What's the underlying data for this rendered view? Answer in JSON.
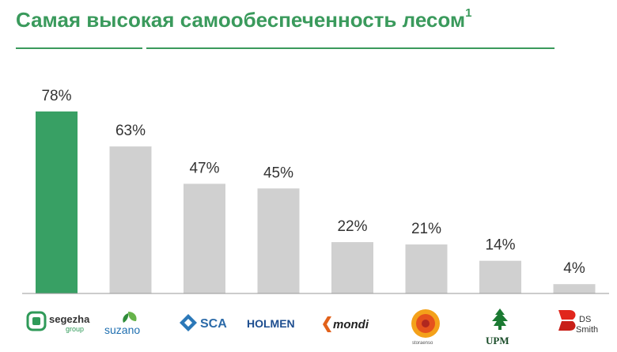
{
  "header": {
    "title": "Самая высокая самообеспеченность лесом",
    "footnote_mark": "1"
  },
  "colors": {
    "accent": "#3a9a5c",
    "highlight_bar": "#38a064",
    "other_bar": "#d0d0d0",
    "label": "#333333"
  },
  "chart_data": {
    "type": "bar",
    "title": "Самая высокая самообеспеченность лесом",
    "categories": [
      "Segezha group",
      "Suzano",
      "SCA",
      "Holmen",
      "Mondi",
      "Stora Enso",
      "UPM",
      "DS Smith"
    ],
    "values": [
      78,
      63,
      47,
      45,
      22,
      21,
      14,
      4
    ],
    "labels": [
      "78%",
      "63%",
      "47%",
      "45%",
      "22%",
      "21%",
      "14%",
      "4%"
    ],
    "highlight_index": 0,
    "unit": "%",
    "ylim": [
      0,
      100
    ],
    "grid": false,
    "legend": "none"
  },
  "logos": {
    "segezha": {
      "name": "segezha",
      "sub": "group"
    },
    "suzano": {
      "name": "suzano"
    },
    "sca": {
      "name": "SCA"
    },
    "holmen": {
      "name": "HOLMEN"
    },
    "mondi": {
      "name": "mondi"
    },
    "storaenso": {
      "name": "storaenso"
    },
    "upm": {
      "name": "UPM"
    },
    "dssmith": {
      "line1": "DS",
      "line2": "Smith"
    }
  }
}
